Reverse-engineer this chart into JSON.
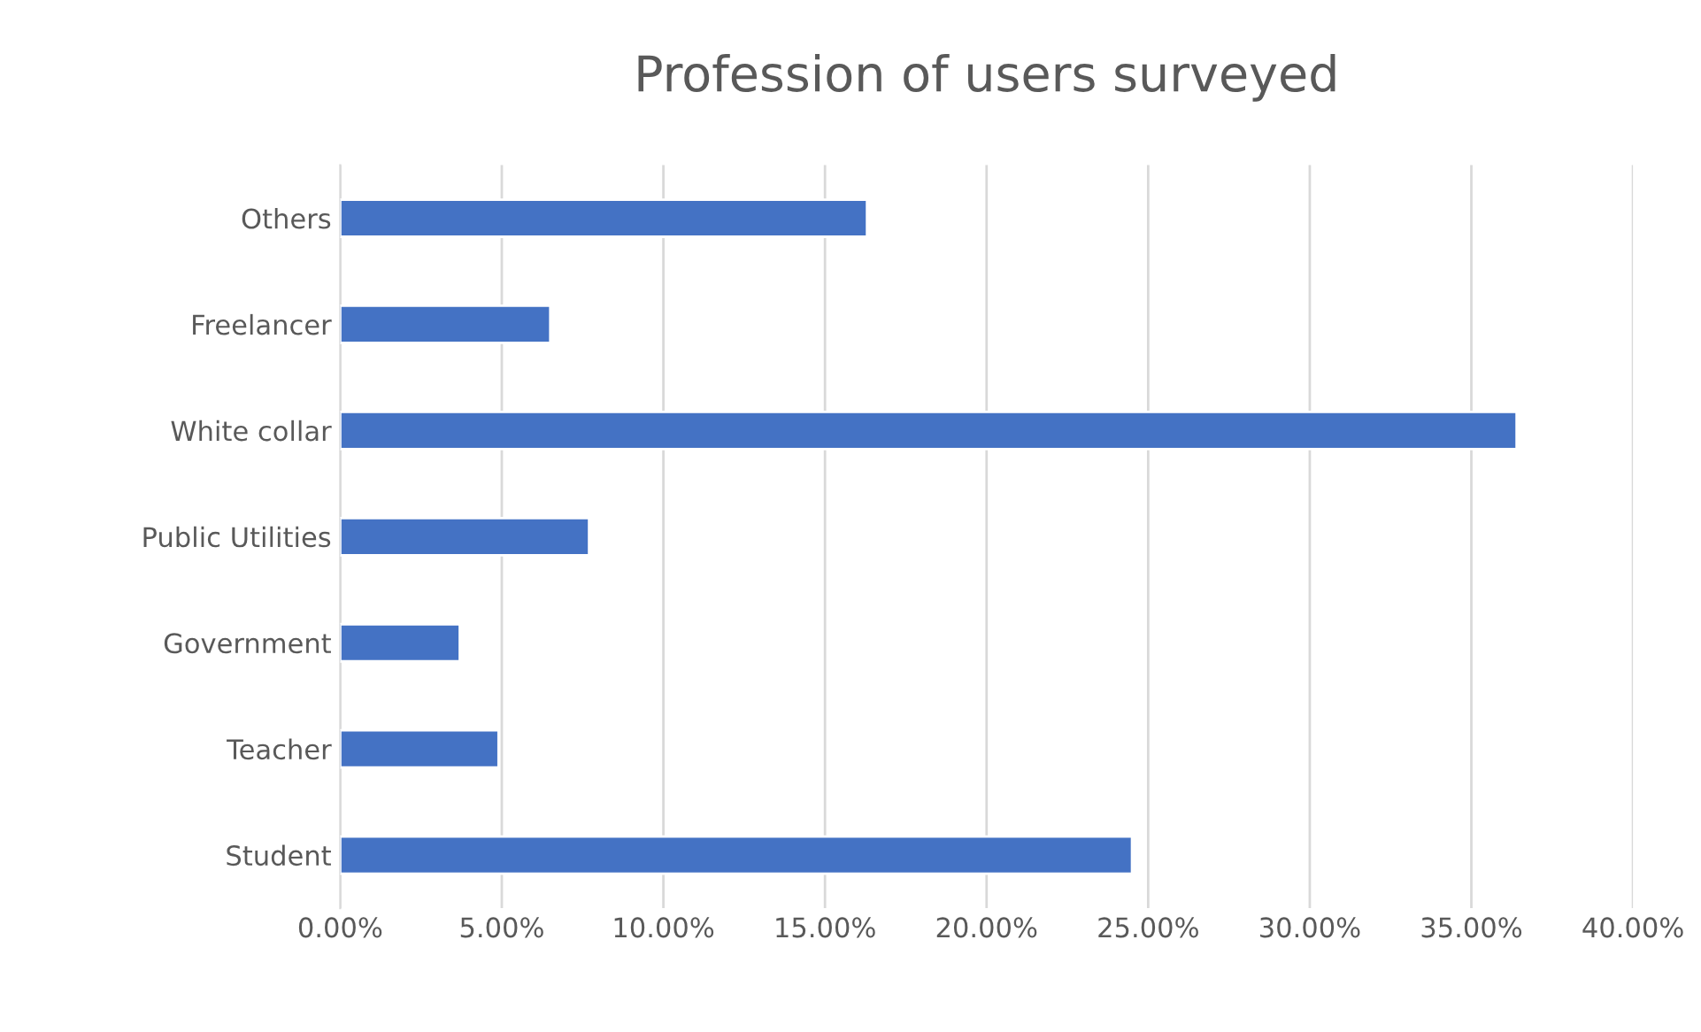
{
  "chart_data": {
    "type": "bar",
    "orientation": "horizontal",
    "title": "Profession of users surveyed",
    "categories": [
      "Others",
      "Freelancer",
      "White collar",
      "Public Utilities",
      "Government",
      "Teacher",
      "Student"
    ],
    "values": [
      16.3,
      6.5,
      36.4,
      7.7,
      3.7,
      4.9,
      24.5
    ],
    "color": "#4472c4",
    "xlim": [
      0,
      40
    ],
    "xticks": [
      {
        "value": 0,
        "label": "0.00%"
      },
      {
        "value": 5,
        "label": "5.00%"
      },
      {
        "value": 10,
        "label": "10.00%"
      },
      {
        "value": 15,
        "label": "15.00%"
      },
      {
        "value": 20,
        "label": "20.00%"
      },
      {
        "value": 25,
        "label": "25.00%"
      },
      {
        "value": 30,
        "label": "30.00%"
      },
      {
        "value": 35,
        "label": "35.00%"
      },
      {
        "value": 40,
        "label": "40.00%"
      }
    ],
    "grid": "x"
  }
}
